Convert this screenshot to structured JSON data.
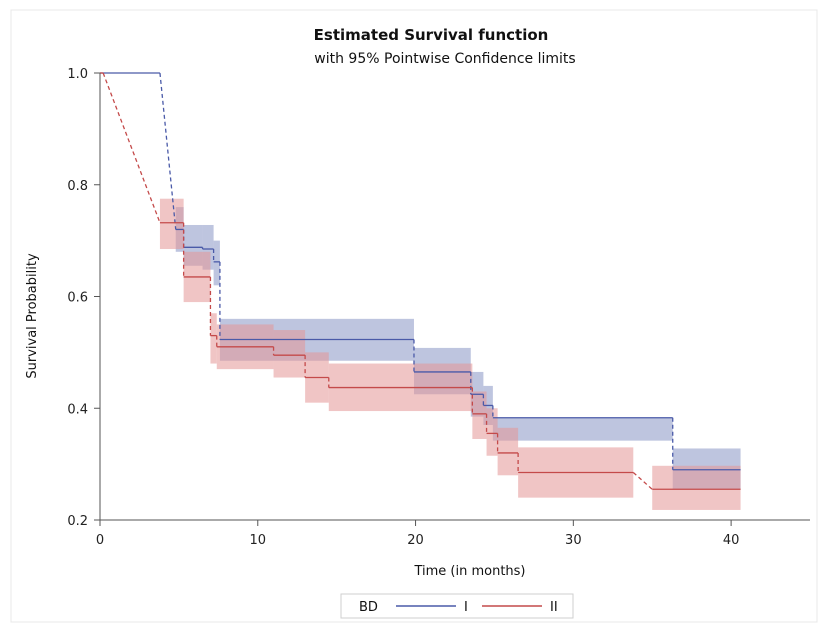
{
  "chart_data": {
    "type": "step-line",
    "title": "Estimated Survival function",
    "subtitle": "with 95% Pointwise Confidence limits",
    "xlabel": "Time (in months)",
    "ylabel": "Survival Probability",
    "xlim": [
      0,
      45
    ],
    "ylim": [
      0.2,
      1.0
    ],
    "xticks": [
      0,
      10,
      20,
      30,
      40
    ],
    "yticks": [
      0.2,
      0.4,
      0.6,
      0.8,
      1.0
    ],
    "ytick_labels": [
      "0.2",
      "0.4",
      "0.6",
      "0.8",
      "1.0"
    ],
    "grid": false,
    "legend": {
      "title": "BD",
      "position": "bottom-center",
      "entries": [
        "I",
        "II"
      ]
    },
    "series": [
      {
        "name": "I",
        "color": "#4a5aa8",
        "band_color": "#8896c4",
        "steps": [
          {
            "x0": 0,
            "x1": 3.8,
            "y": 1.0,
            "lo": null,
            "hi": null
          },
          {
            "x0": 4.8,
            "x1": 5.3,
            "y": 0.72,
            "lo": 0.68,
            "hi": 0.76
          },
          {
            "x0": 5.3,
            "x1": 6.5,
            "y": 0.688,
            "lo": 0.655,
            "hi": 0.728
          },
          {
            "x0": 6.5,
            "x1": 7.2,
            "y": 0.685,
            "lo": 0.648,
            "hi": 0.728
          },
          {
            "x0": 7.2,
            "x1": 7.6,
            "y": 0.662,
            "lo": 0.62,
            "hi": 0.7
          },
          {
            "x0": 7.6,
            "x1": 19.9,
            "y": 0.523,
            "lo": 0.485,
            "hi": 0.56
          },
          {
            "x0": 19.9,
            "x1": 23.5,
            "y": 0.465,
            "lo": 0.425,
            "hi": 0.508
          },
          {
            "x0": 23.5,
            "x1": 24.3,
            "y": 0.425,
            "lo": 0.385,
            "hi": 0.465
          },
          {
            "x0": 24.3,
            "x1": 24.9,
            "y": 0.405,
            "lo": 0.37,
            "hi": 0.44
          },
          {
            "x0": 24.9,
            "x1": 36.3,
            "y": 0.383,
            "lo": 0.342,
            "hi": 0.383
          },
          {
            "x0": 36.3,
            "x1": 40.6,
            "y": 0.29,
            "lo": 0.255,
            "hi": 0.328
          }
        ]
      },
      {
        "name": "II",
        "color": "#c44a4a",
        "band_color": "#e49696",
        "steps": [
          {
            "x0": 0,
            "x1": 0.2,
            "y": 1.0,
            "lo": null,
            "hi": null
          },
          {
            "x0": 3.8,
            "x1": 5.3,
            "y": 0.732,
            "lo": 0.685,
            "hi": 0.775
          },
          {
            "x0": 5.3,
            "x1": 7.0,
            "y": 0.635,
            "lo": 0.59,
            "hi": 0.68
          },
          {
            "x0": 7.0,
            "x1": 7.4,
            "y": 0.53,
            "lo": 0.48,
            "hi": 0.57
          },
          {
            "x0": 7.4,
            "x1": 11.0,
            "y": 0.51,
            "lo": 0.47,
            "hi": 0.55
          },
          {
            "x0": 11.0,
            "x1": 13.0,
            "y": 0.495,
            "lo": 0.455,
            "hi": 0.54
          },
          {
            "x0": 13.0,
            "x1": 14.5,
            "y": 0.455,
            "lo": 0.41,
            "hi": 0.5
          },
          {
            "x0": 14.5,
            "x1": 23.6,
            "y": 0.437,
            "lo": 0.395,
            "hi": 0.48
          },
          {
            "x0": 23.6,
            "x1": 24.5,
            "y": 0.39,
            "lo": 0.345,
            "hi": 0.43
          },
          {
            "x0": 24.5,
            "x1": 25.2,
            "y": 0.355,
            "lo": 0.315,
            "hi": 0.4
          },
          {
            "x0": 25.2,
            "x1": 26.5,
            "y": 0.32,
            "lo": 0.28,
            "hi": 0.365
          },
          {
            "x0": 26.5,
            "x1": 33.8,
            "y": 0.285,
            "lo": 0.24,
            "hi": 0.33
          },
          {
            "x0": 35.0,
            "x1": 40.6,
            "y": 0.255,
            "lo": 0.218,
            "hi": 0.297
          }
        ]
      }
    ]
  }
}
